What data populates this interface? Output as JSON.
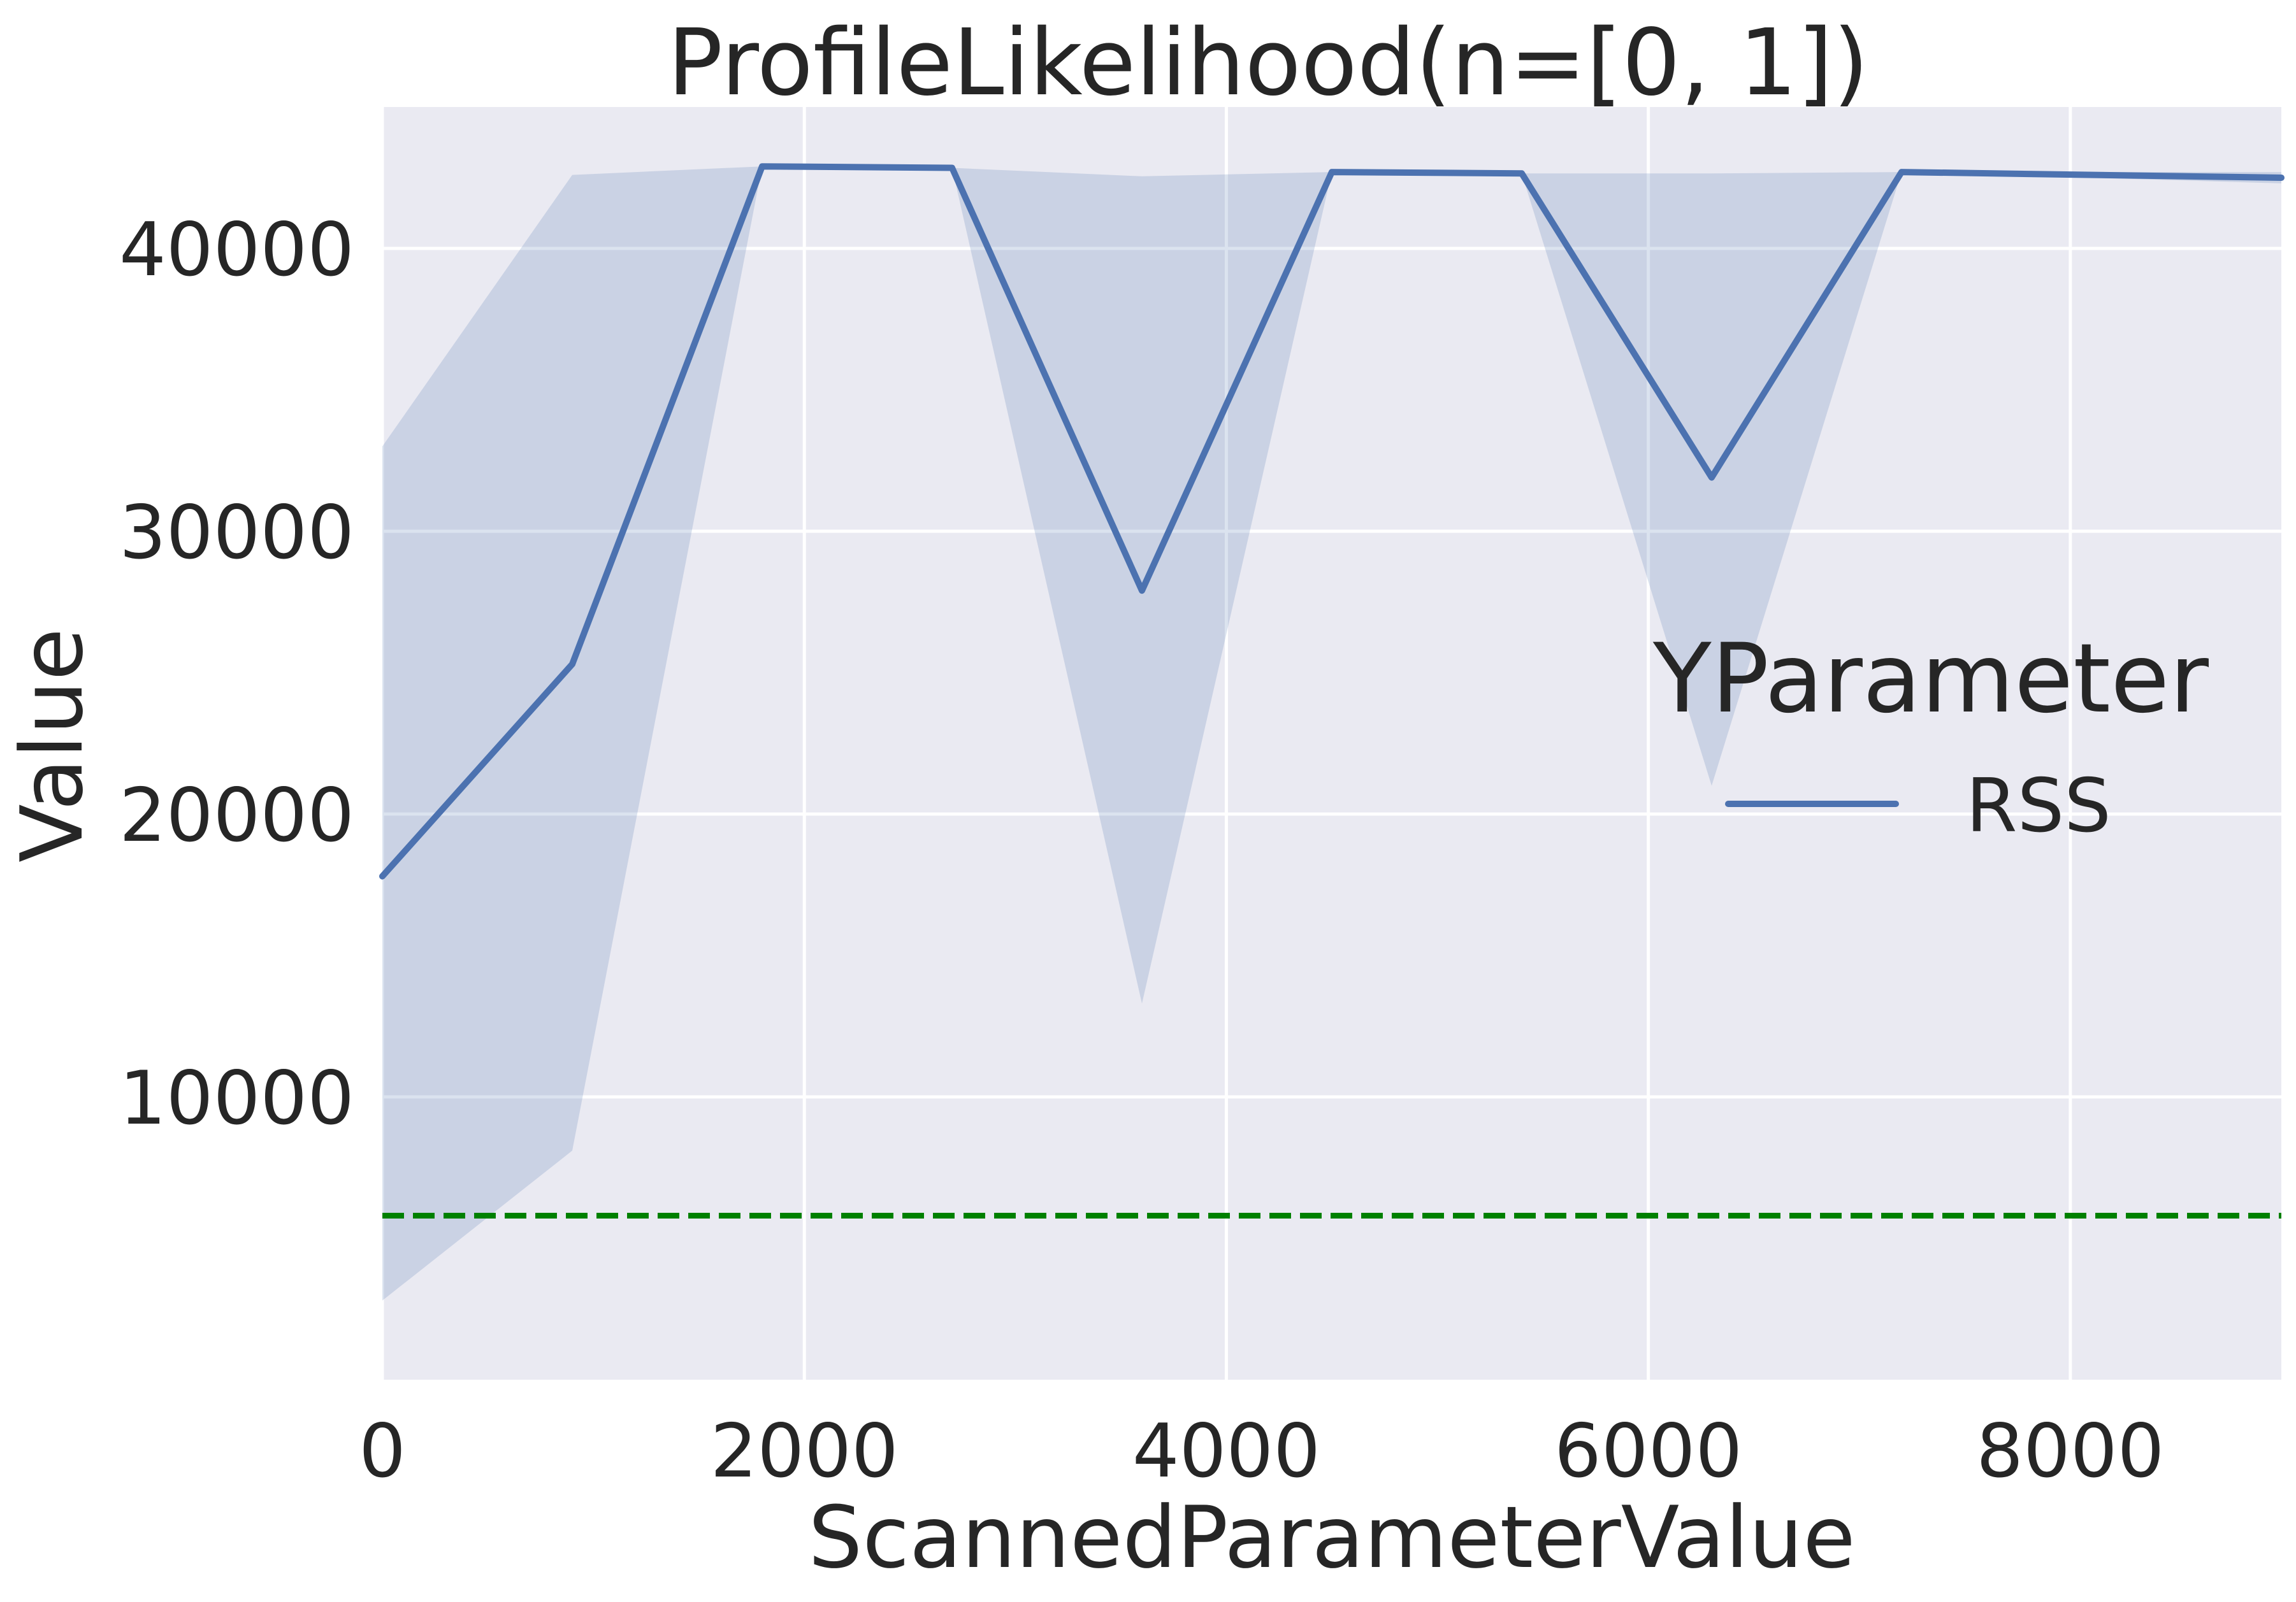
{
  "chart_data": {
    "type": "line",
    "title": "ProfileLikelihood(n=[0, 1])",
    "xlabel": "ScannedParameterValue",
    "ylabel": "Value",
    "xlim": [
      0,
      9000
    ],
    "ylim": [
      0,
      45000
    ],
    "xticks": [
      0,
      2000,
      4000,
      6000,
      8000
    ],
    "yticks": [
      10000,
      20000,
      30000,
      40000
    ],
    "grid": true,
    "legend": {
      "title": "YParameter",
      "placement": "center-right",
      "entries": [
        "RSS"
      ]
    },
    "x": [
      0,
      900,
      1800,
      2700,
      3600,
      4500,
      5400,
      6300,
      7200,
      9000
    ],
    "series": [
      {
        "name": "RSS",
        "color": "#4c72b0",
        "values": [
          17800,
          25300,
          42900,
          42850,
          27900,
          42700,
          42650,
          31900,
          42700,
          42500
        ],
        "band_lower": [
          2800,
          8100,
          42900,
          42850,
          13300,
          42700,
          42650,
          21000,
          42700,
          42300
        ],
        "band_upper": [
          33000,
          42600,
          42900,
          42850,
          42550,
          42700,
          42650,
          42650,
          42700,
          42700
        ]
      }
    ],
    "reference_line": {
      "y": 5800,
      "color": "#008000",
      "style": "dashed"
    }
  }
}
